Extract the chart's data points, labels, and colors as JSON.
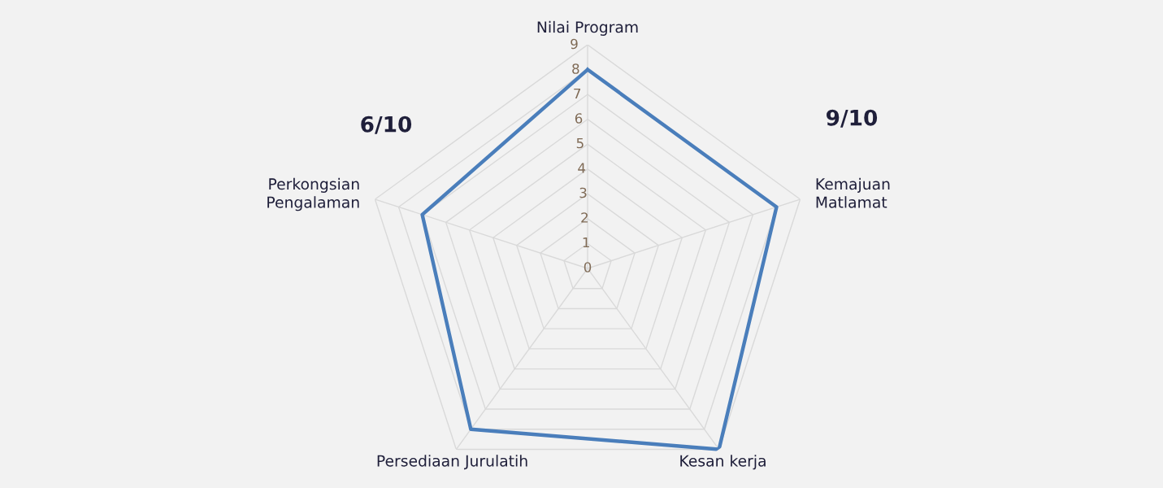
{
  "chart_data": {
    "type": "radar",
    "categories": [
      "Nilai Program",
      "Kemajuan Matlamat",
      "Kesan kerja",
      "Persediaan Jurulatih",
      "Perkongsian Pengalaman"
    ],
    "series": [
      {
        "color": "#4a7ebb",
        "values": [
          8,
          8,
          9,
          8,
          7
        ]
      }
    ],
    "ylim": [
      0,
      9
    ],
    "yticks": [
      0,
      1,
      2,
      3,
      4,
      5,
      6,
      7,
      8,
      9
    ],
    "grid": true,
    "annotations": [
      "6/10",
      "9/10"
    ]
  }
}
